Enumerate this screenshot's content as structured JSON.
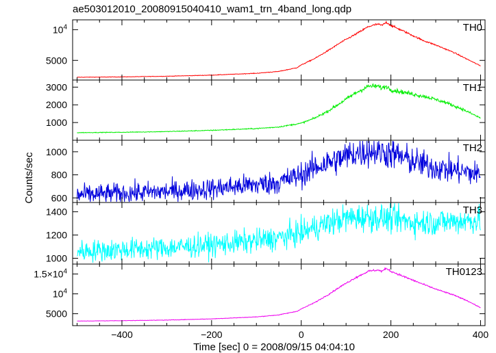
{
  "title": "ae503012010_20080915040410_wam1_trn_4band_long.qdp",
  "xlabel": "Time [sec] 0 = 2008/09/15 04:04:10",
  "ylabel": "Counts/sec",
  "chart_data": [
    {
      "type": "line",
      "name": "TH0",
      "color": "#ff0000",
      "xlim": [
        -510,
        410
      ],
      "ylim": [
        1800,
        11600
      ],
      "yticks": [
        {
          "v": 5000,
          "t": "5000"
        },
        {
          "v": 10000,
          "t": "10^4"
        }
      ],
      "noise": 0.008,
      "points": [
        [
          -500,
          2250
        ],
        [
          -400,
          2310
        ],
        [
          -300,
          2420
        ],
        [
          -200,
          2600
        ],
        [
          -100,
          2900
        ],
        [
          -50,
          3200
        ],
        [
          -10,
          3800
        ],
        [
          0,
          4250
        ],
        [
          30,
          5300
        ],
        [
          60,
          6600
        ],
        [
          90,
          8000
        ],
        [
          120,
          9200
        ],
        [
          150,
          10500
        ],
        [
          170,
          10900
        ],
        [
          180,
          10700
        ],
        [
          190,
          11200
        ],
        [
          200,
          10700
        ],
        [
          230,
          9700
        ],
        [
          270,
          8300
        ],
        [
          300,
          7500
        ],
        [
          340,
          6300
        ],
        [
          370,
          5200
        ],
        [
          400,
          4100
        ]
      ]
    },
    {
      "type": "line",
      "name": "TH1",
      "color": "#00ee00",
      "xlim": [
        -510,
        410
      ],
      "ylim": [
        0,
        3400
      ],
      "yticks": [
        {
          "v": 1000,
          "t": "1000"
        },
        {
          "v": 2000,
          "t": "2000"
        },
        {
          "v": 3000,
          "t": "3000"
        }
      ],
      "noise": 0.022,
      "points": [
        [
          -500,
          430
        ],
        [
          -400,
          450
        ],
        [
          -300,
          490
        ],
        [
          -200,
          560
        ],
        [
          -100,
          660
        ],
        [
          -50,
          750
        ],
        [
          0,
          960
        ],
        [
          30,
          1250
        ],
        [
          60,
          1650
        ],
        [
          90,
          2150
        ],
        [
          120,
          2650
        ],
        [
          150,
          3050
        ],
        [
          170,
          3050
        ],
        [
          180,
          2950
        ],
        [
          190,
          3050
        ],
        [
          200,
          2850
        ],
        [
          240,
          2650
        ],
        [
          280,
          2450
        ],
        [
          320,
          2150
        ],
        [
          360,
          1750
        ],
        [
          400,
          1250
        ]
      ]
    },
    {
      "type": "line",
      "name": "TH2",
      "color": "#0000dd",
      "xlim": [
        -510,
        410
      ],
      "ylim": [
        560,
        1100
      ],
      "yticks": [
        {
          "v": 600,
          "t": "600"
        },
        {
          "v": 800,
          "t": "800"
        },
        {
          "v": 1000,
          "t": "1000"
        }
      ],
      "noise": 0.07,
      "points": [
        [
          -500,
          625
        ],
        [
          -400,
          640
        ],
        [
          -300,
          655
        ],
        [
          -200,
          680
        ],
        [
          -100,
          715
        ],
        [
          -50,
          735
        ],
        [
          0,
          800
        ],
        [
          40,
          880
        ],
        [
          80,
          930
        ],
        [
          120,
          990
        ],
        [
          160,
          1010
        ],
        [
          200,
          985
        ],
        [
          240,
          930
        ],
        [
          280,
          880
        ],
        [
          320,
          850
        ],
        [
          360,
          830
        ],
        [
          400,
          800
        ]
      ]
    },
    {
      "type": "line",
      "name": "TH3",
      "color": "#00ffff",
      "xlim": [
        -510,
        410
      ],
      "ylim": [
        950,
        1480
      ],
      "yticks": [
        {
          "v": 1000,
          "t": "1000"
        },
        {
          "v": 1200,
          "t": "1200"
        },
        {
          "v": 1400,
          "t": "1400"
        }
      ],
      "noise": 0.045,
      "points": [
        [
          -500,
          1060
        ],
        [
          -400,
          1075
        ],
        [
          -300,
          1090
        ],
        [
          -200,
          1115
        ],
        [
          -100,
          1150
        ],
        [
          -50,
          1175
        ],
        [
          0,
          1220
        ],
        [
          50,
          1290
        ],
        [
          100,
          1345
        ],
        [
          150,
          1355
        ],
        [
          200,
          1340
        ],
        [
          250,
          1310
        ],
        [
          300,
          1310
        ],
        [
          350,
          1320
        ],
        [
          400,
          1330
        ]
      ]
    },
    {
      "type": "line",
      "name": "TH0123",
      "color": "#ee00ee",
      "xlim": [
        -510,
        410
      ],
      "ylim": [
        2000,
        17500
      ],
      "yticks": [
        {
          "v": 5000,
          "t": "5000"
        },
        {
          "v": 10000,
          "t": "10^4"
        },
        {
          "v": 15000,
          "t": "1.5×10^4"
        }
      ],
      "noise": 0.008,
      "points": [
        [
          -500,
          3150
        ],
        [
          -400,
          3250
        ],
        [
          -300,
          3400
        ],
        [
          -200,
          3700
        ],
        [
          -100,
          4200
        ],
        [
          -50,
          4700
        ],
        [
          -10,
          5600
        ],
        [
          0,
          6200
        ],
        [
          30,
          7800
        ],
        [
          60,
          9800
        ],
        [
          90,
          12000
        ],
        [
          120,
          14000
        ],
        [
          150,
          15700
        ],
        [
          170,
          16000
        ],
        [
          180,
          15700
        ],
        [
          190,
          16400
        ],
        [
          200,
          15700
        ],
        [
          230,
          14300
        ],
        [
          270,
          12500
        ],
        [
          300,
          11200
        ],
        [
          340,
          9700
        ],
        [
          370,
          8300
        ],
        [
          400,
          6500
        ]
      ]
    }
  ],
  "xticks": [
    {
      "v": -400,
      "t": "−400"
    },
    {
      "v": -200,
      "t": "−200"
    },
    {
      "v": 0,
      "t": "0"
    },
    {
      "v": 200,
      "t": "200"
    },
    {
      "v": 400,
      "t": "400"
    }
  ]
}
